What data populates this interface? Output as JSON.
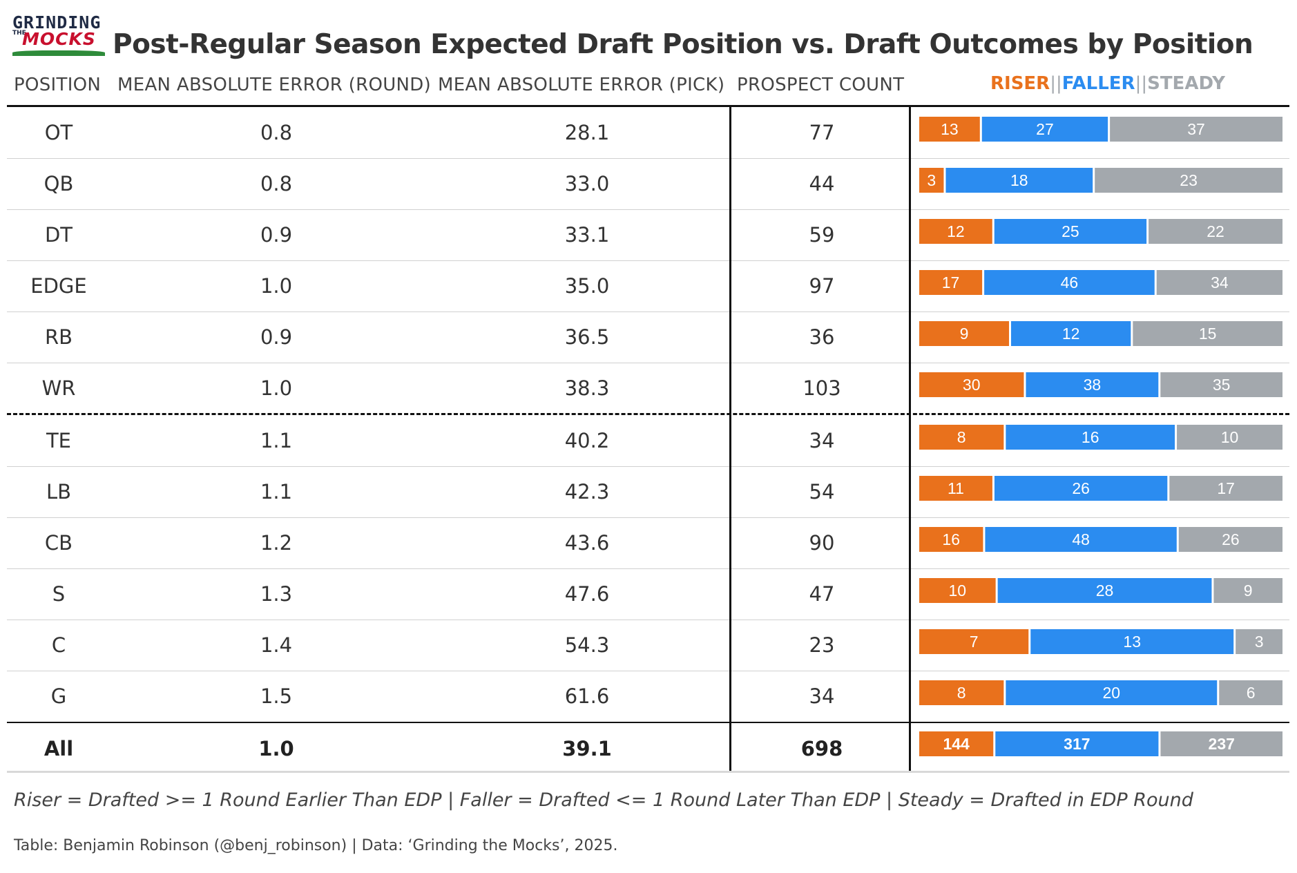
{
  "brand": {
    "line1": "GRINDING",
    "line2": "THE",
    "line3": "MOCKS"
  },
  "title": "Post-Regular Season Expected Draft Position vs. Draft Outcomes by Position",
  "columns": {
    "position": "POSITION",
    "mae_round": "MEAN ABSOLUTE ERROR (ROUND)",
    "mae_pick": "MEAN ABSOLUTE ERROR (PICK)",
    "count": "PROSPECT COUNT"
  },
  "legend": {
    "riser": "RISER",
    "faller": "FALLER",
    "steady": "STEADY",
    "sep": "||"
  },
  "colors": {
    "riser": "#e9711c",
    "faller": "#2b8cf0",
    "steady": "#a3a8ad"
  },
  "chart_data": {
    "type": "table",
    "columns": [
      "POSITION",
      "MEAN ABSOLUTE ERROR (ROUND)",
      "MEAN ABSOLUTE ERROR (PICK)",
      "PROSPECT COUNT",
      "RISER||FALLER||STEADY"
    ],
    "rows": [
      {
        "position": "OT",
        "mae_round": "0.8",
        "mae_pick": "28.1",
        "count": "77",
        "riser": 13,
        "faller": 27,
        "steady": 37
      },
      {
        "position": "QB",
        "mae_round": "0.8",
        "mae_pick": "33.0",
        "count": "44",
        "riser": 3,
        "faller": 18,
        "steady": 23
      },
      {
        "position": "DT",
        "mae_round": "0.9",
        "mae_pick": "33.1",
        "count": "59",
        "riser": 12,
        "faller": 25,
        "steady": 22
      },
      {
        "position": "EDGE",
        "mae_round": "1.0",
        "mae_pick": "35.0",
        "count": "97",
        "riser": 17,
        "faller": 46,
        "steady": 34
      },
      {
        "position": "RB",
        "mae_round": "0.9",
        "mae_pick": "36.5",
        "count": "36",
        "riser": 9,
        "faller": 12,
        "steady": 15
      },
      {
        "position": "WR",
        "mae_round": "1.0",
        "mae_pick": "38.3",
        "count": "103",
        "riser": 30,
        "faller": 38,
        "steady": 35
      },
      {
        "position": "TE",
        "mae_round": "1.1",
        "mae_pick": "40.2",
        "count": "34",
        "riser": 8,
        "faller": 16,
        "steady": 10
      },
      {
        "position": "LB",
        "mae_round": "1.1",
        "mae_pick": "42.3",
        "count": "54",
        "riser": 11,
        "faller": 26,
        "steady": 17
      },
      {
        "position": "CB",
        "mae_round": "1.2",
        "mae_pick": "43.6",
        "count": "90",
        "riser": 16,
        "faller": 48,
        "steady": 26
      },
      {
        "position": "S",
        "mae_round": "1.3",
        "mae_pick": "47.6",
        "count": "47",
        "riser": 10,
        "faller": 28,
        "steady": 9
      },
      {
        "position": "C",
        "mae_round": "1.4",
        "mae_pick": "54.3",
        "count": "23",
        "riser": 7,
        "faller": 13,
        "steady": 3
      },
      {
        "position": "G",
        "mae_round": "1.5",
        "mae_pick": "61.6",
        "count": "34",
        "riser": 8,
        "faller": 20,
        "steady": 6
      }
    ],
    "total": {
      "position": "All",
      "mae_round": "1.0",
      "mae_pick": "39.1",
      "count": "698",
      "riser": 144,
      "faller": 317,
      "steady": 237
    },
    "dashed_divider_after_row": 6
  },
  "footnote": "Riser = Drafted >= 1 Round Earlier Than EDP | Faller = Drafted <= 1 Round Later Than EDP | Steady = Drafted in EDP Round",
  "credit": "Table: Benjamin Robinson (@benj_robinson) | Data: ‘Grinding the Mocks’, 2025."
}
